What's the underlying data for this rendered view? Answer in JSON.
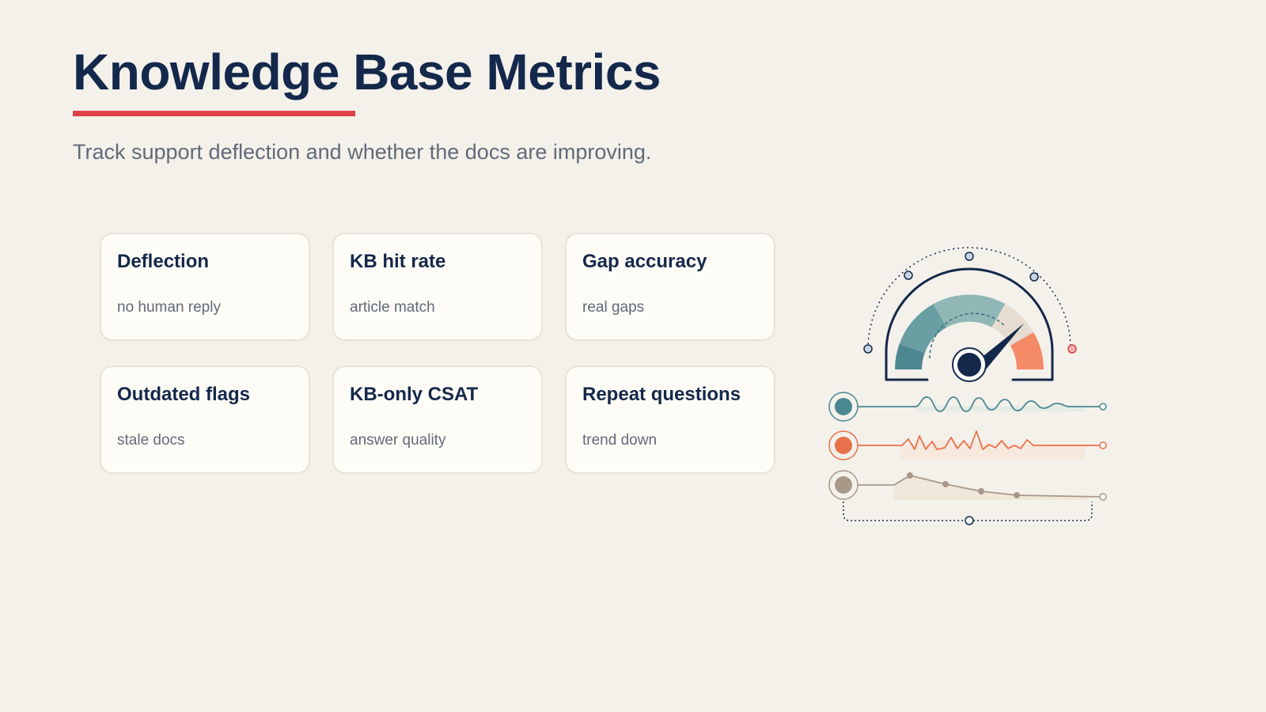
{
  "header": {
    "title": "Knowledge Base Metrics",
    "subtitle": "Track support deflection and whether the docs are improving."
  },
  "metrics": [
    {
      "title": "Deflection",
      "subtitle": "no human reply"
    },
    {
      "title": "KB hit rate",
      "subtitle": "article match"
    },
    {
      "title": "Gap accuracy",
      "subtitle": "real gaps"
    },
    {
      "title": "Outdated flags",
      "subtitle": "stale docs"
    },
    {
      "title": "KB-only CSAT",
      "subtitle": "answer quality"
    },
    {
      "title": "Repeat questions",
      "subtitle": "trend down"
    }
  ],
  "illustration": {
    "gauge_icon": "speedometer-gauge-icon",
    "trend_icons": [
      "teal-wave-line-icon",
      "orange-spike-line-icon",
      "tan-declining-line-icon"
    ]
  },
  "colors": {
    "background": "#f4f1eb",
    "title": "#14284b",
    "accent_red": "#e0404a",
    "teal": "#4a8890",
    "orange": "#e8704a",
    "tan": "#a89888",
    "card_bg": "#fefcf6"
  }
}
